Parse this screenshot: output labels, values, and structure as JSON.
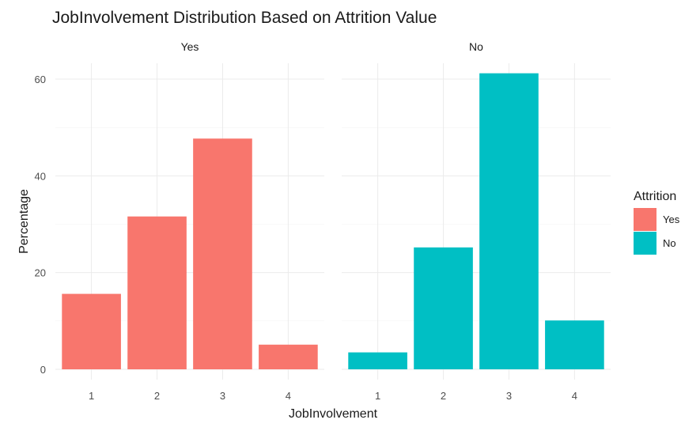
{
  "chart_data": {
    "type": "bar",
    "title": "JobInvolvement Distribution Based on Attrition Value",
    "xlabel": "JobInvolvement",
    "ylabel": "Percentage",
    "categories": [
      "1",
      "2",
      "3",
      "4"
    ],
    "ylim": [
      0,
      65
    ],
    "yticks": [
      "0",
      "20",
      "40",
      "60"
    ],
    "grid": true,
    "legend": {
      "title": "Attrition",
      "placement": "right",
      "entries": [
        {
          "label": "Yes",
          "color": "#F8766D"
        },
        {
          "label": "No",
          "color": "#00BFC4"
        }
      ]
    },
    "facets": [
      {
        "label": "Yes",
        "color": "#F8766D",
        "values": [
          15.6,
          31.6,
          47.7,
          5.1
        ]
      },
      {
        "label": "No",
        "color": "#00BFC4",
        "values": [
          3.5,
          25.2,
          61.2,
          10.1
        ]
      }
    ]
  }
}
